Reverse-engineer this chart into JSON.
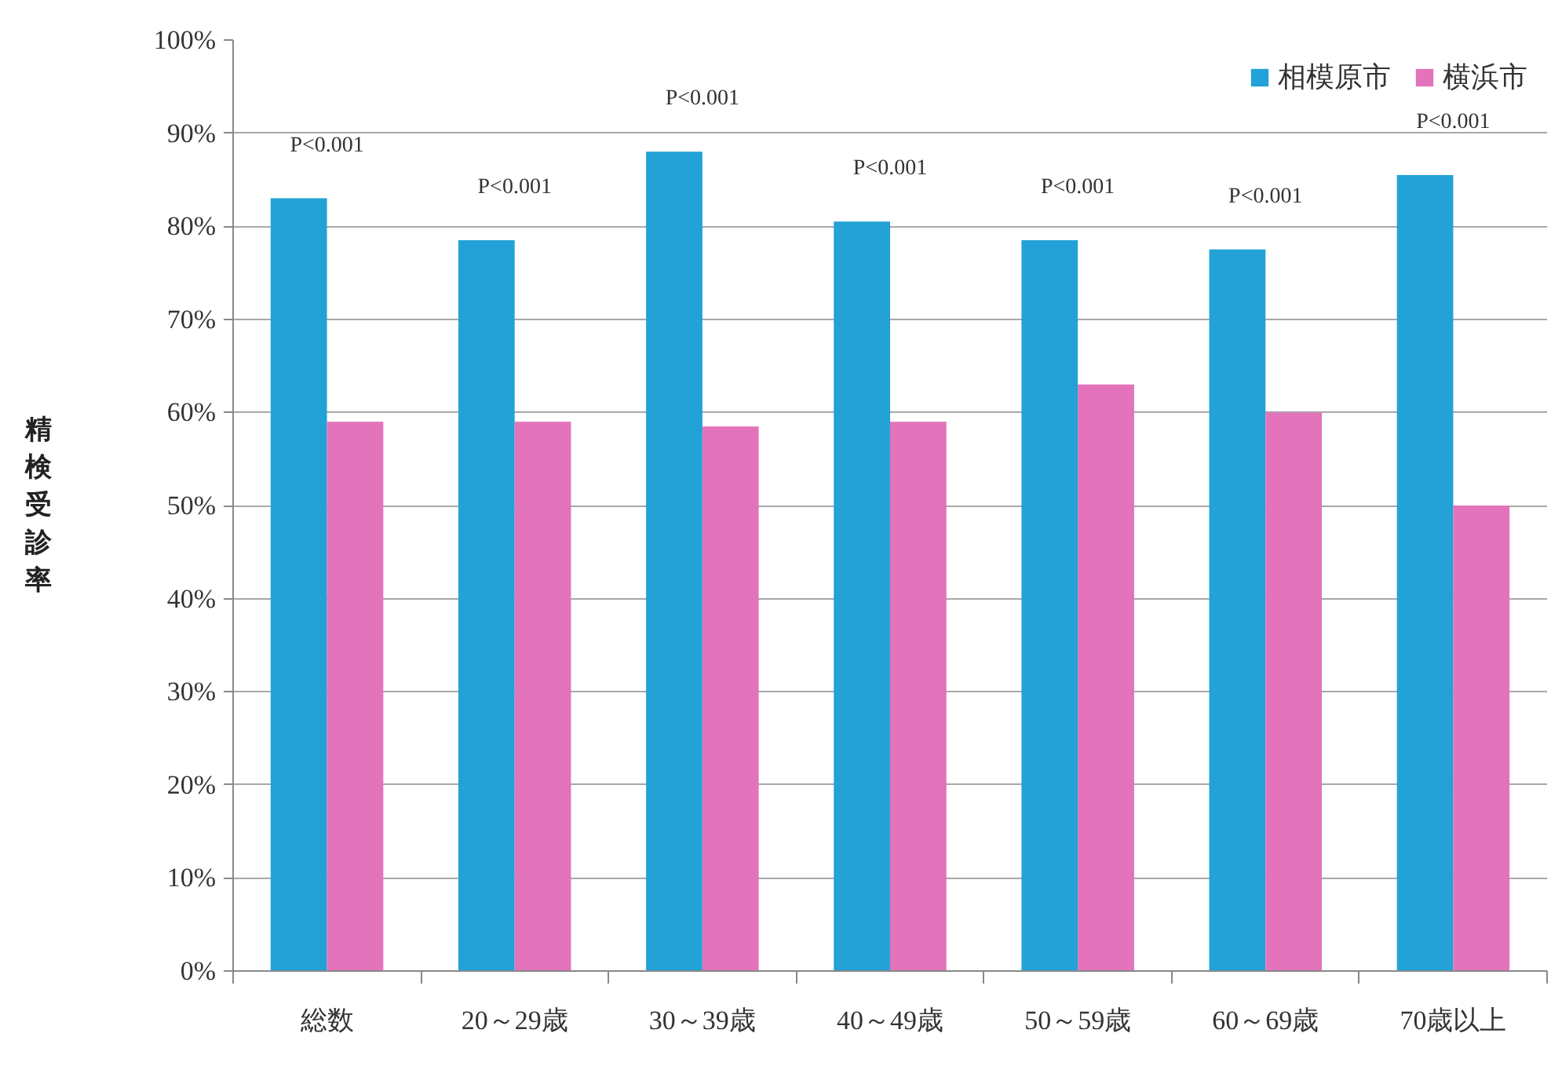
{
  "chart_data": {
    "type": "bar",
    "ylabel": "精検受診率",
    "categories": [
      "総数",
      "20～29歳",
      "30～39歳",
      "40～49歳",
      "50～59歳",
      "60～69歳",
      "70歳以上"
    ],
    "series": [
      {
        "name": "相模原市",
        "color": "#22a2d6",
        "values": [
          83,
          78.5,
          88,
          80.5,
          78.5,
          77.5,
          85.5
        ]
      },
      {
        "name": "横浜市",
        "color": "#e373bb",
        "values": [
          59,
          59,
          58.5,
          59,
          63,
          60,
          50
        ]
      }
    ],
    "ylim": [
      0,
      100
    ],
    "yticks": [
      {
        "value": 0,
        "label": "0%"
      },
      {
        "value": 10,
        "label": "10%"
      },
      {
        "value": 20,
        "label": "20%"
      },
      {
        "value": 30,
        "label": "30%"
      },
      {
        "value": 40,
        "label": "40%"
      },
      {
        "value": 50,
        "label": "50%"
      },
      {
        "value": 60,
        "label": "60%"
      },
      {
        "value": 70,
        "label": "70%"
      },
      {
        "value": 80,
        "label": "80%"
      },
      {
        "value": 90,
        "label": "90%"
      },
      {
        "value": 100,
        "label": "100%"
      }
    ],
    "annotations": [
      "P<0.001",
      "P<0.001",
      "P<0.001",
      "P<0.001",
      "P<0.001",
      "P<0.001",
      "P<0.001"
    ],
    "grid": "y",
    "legend": "top right"
  }
}
